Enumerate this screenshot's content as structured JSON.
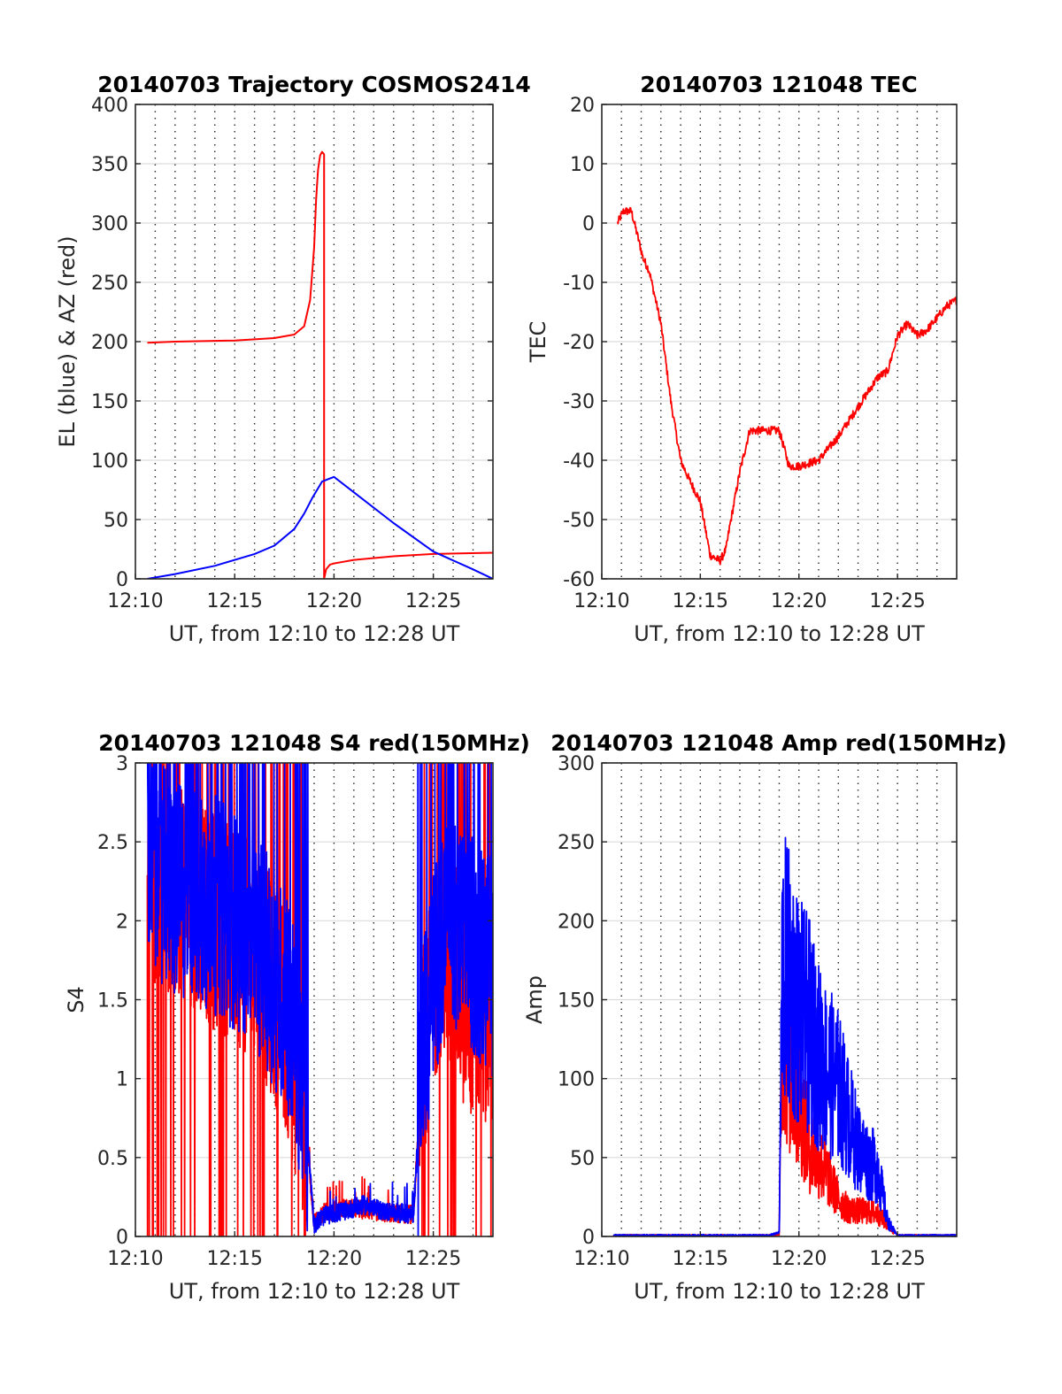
{
  "figure": {
    "panels": [
      {
        "title": "20140703 Trajectory COSMOS2414",
        "xlabel": "UT, from 12:10 to 12:28 UT",
        "ylabel": "EL (blue) & AZ (red)",
        "xticks": [
          "12:10",
          "12:15",
          "12:20",
          "12:25"
        ],
        "yticks": [
          "0",
          "50",
          "100",
          "150",
          "200",
          "250",
          "300",
          "350",
          "400"
        ]
      },
      {
        "title": "20140703 121048 TEC",
        "xlabel": "UT, from 12:10 to 12:28 UT",
        "ylabel": "TEC",
        "xticks": [
          "12:10",
          "12:15",
          "12:20",
          "12:25"
        ],
        "yticks": [
          "-60",
          "-50",
          "-40",
          "-30",
          "-20",
          "-10",
          "0",
          "10",
          "20"
        ]
      },
      {
        "title": "20140703 121048 S4 red(150MHz)",
        "xlabel": "UT, from 12:10 to 12:28 UT",
        "ylabel": "S4",
        "xticks": [
          "12:10",
          "12:15",
          "12:20",
          "12:25"
        ],
        "yticks": [
          "0",
          "0.5",
          "1",
          "1.5",
          "2",
          "2.5",
          "3"
        ]
      },
      {
        "title": "20140703 121048 Amp red(150MHz)",
        "xlabel": "UT, from 12:10 to 12:28 UT",
        "ylabel": "Amp",
        "xticks": [
          "12:10",
          "12:15",
          "12:20",
          "12:25"
        ],
        "yticks": [
          "0",
          "50",
          "100",
          "150",
          "200",
          "250",
          "300"
        ]
      }
    ]
  },
  "chart_data": [
    {
      "type": "line",
      "title": "20140703 Trajectory COSMOS2414",
      "xlabel": "UT, from 12:10 to 12:28 UT",
      "ylabel": "EL (blue) & AZ (red)",
      "xlim": [
        12.1667,
        12.4667
      ],
      "ylim": [
        0,
        400
      ],
      "x_unit": "hours",
      "grid": true,
      "series": [
        {
          "color": "#ff0000",
          "x": [
            12.1767,
            12.2,
            12.25,
            12.2833,
            12.3,
            12.3083,
            12.3133,
            12.3167,
            12.3183,
            12.32,
            12.3217,
            12.3233,
            12.325,
            12.325,
            12.325,
            12.3267,
            12.33,
            12.3333,
            12.35,
            12.3833,
            12.4167,
            12.4667
          ],
          "y": [
            199,
            200,
            201,
            203,
            206,
            213,
            235,
            280,
            320,
            345,
            357,
            360,
            358,
            200,
            0,
            8,
            12,
            13,
            16,
            19,
            21,
            22
          ]
        },
        {
          "color": "#0000ff",
          "x": [
            12.1767,
            12.2,
            12.2333,
            12.2667,
            12.2833,
            12.3,
            12.3083,
            12.315,
            12.3233,
            12.3333,
            12.35,
            12.3833,
            12.4167,
            12.45,
            12.4667
          ],
          "y": [
            0,
            4,
            11,
            21,
            28,
            42,
            55,
            68,
            82,
            86,
            73,
            47,
            23,
            8,
            0
          ]
        }
      ]
    },
    {
      "type": "line",
      "title": "20140703 121048 TEC",
      "xlabel": "UT, from 12:10 to 12:28 UT",
      "ylabel": "TEC",
      "xlim": [
        12.1667,
        12.4667
      ],
      "ylim": [
        -60,
        20
      ],
      "x_unit": "hours",
      "grid": true,
      "series": [
        {
          "color": "#ff0000",
          "x": [
            12.18,
            12.185,
            12.1917,
            12.1967,
            12.2017,
            12.2067,
            12.21,
            12.2167,
            12.225,
            12.2333,
            12.24,
            12.25,
            12.2583,
            12.2667,
            12.2717,
            12.275,
            12.2833,
            12.2917,
            12.3,
            12.3083,
            12.3133,
            12.3167,
            12.325,
            12.3333,
            12.35,
            12.3667,
            12.3833,
            12.4,
            12.4083,
            12.4167,
            12.425,
            12.4333,
            12.4417,
            12.45,
            12.4583,
            12.4667
          ],
          "y": [
            0,
            2,
            2,
            -2,
            -6,
            -8,
            -11,
            -17,
            -30,
            -40,
            -43,
            -47,
            -56,
            -57,
            -55,
            -51,
            -42,
            -35,
            -35,
            -35,
            -35,
            -35,
            -41,
            -41,
            -40,
            -36,
            -31,
            -26,
            -25,
            -19,
            -17,
            -19,
            -18,
            -16,
            -14,
            -13
          ]
        }
      ]
    },
    {
      "type": "line",
      "title": "20140703 121048 S4 red(150MHz)",
      "xlabel": "UT, from 12:10 to 12:28 UT",
      "ylabel": "S4",
      "xlim": [
        12.1667,
        12.4667
      ],
      "ylim": [
        0,
        3
      ],
      "x_unit": "hours",
      "grid": true,
      "series": [
        {
          "color": "#ff0000",
          "x": [
            12.1767,
            12.2,
            12.2333,
            12.2667,
            12.2917,
            12.3,
            12.3083,
            12.3167,
            12.325,
            12.3417,
            12.3583,
            12.375,
            12.4,
            12.4083,
            12.425,
            12.4417,
            12.4667
          ],
          "y": [
            2.3,
            2.2,
            2.0,
            1.8,
            1.4,
            1.1,
            0.8,
            0.09,
            0.15,
            0.18,
            0.17,
            0.15,
            0.14,
            1.2,
            1.9,
            1.5,
            1.4
          ]
        },
        {
          "color": "#0000ff",
          "x": [
            12.1767,
            12.2,
            12.2333,
            12.2667,
            12.2917,
            12.3,
            12.3083,
            12.3167,
            12.325,
            12.3417,
            12.3583,
            12.375,
            12.4,
            12.4083,
            12.425,
            12.4417,
            12.4667
          ],
          "y": [
            2.4,
            2.2,
            2.1,
            1.9,
            1.5,
            1.3,
            0.9,
            0.08,
            0.13,
            0.16,
            0.2,
            0.16,
            0.14,
            1.2,
            2.0,
            1.9,
            1.7
          ]
        }
      ]
    },
    {
      "type": "line",
      "title": "20140703 121048 Amp red(150MHz)",
      "xlabel": "UT, from 12:10 to 12:28 UT",
      "ylabel": "Amp",
      "xlim": [
        12.1667,
        12.4667
      ],
      "ylim": [
        0,
        300
      ],
      "x_unit": "hours",
      "grid": true,
      "series": [
        {
          "color": "#ff0000",
          "x": [
            12.1767,
            12.3083,
            12.3167,
            12.3192,
            12.325,
            12.3333,
            12.3417,
            12.35,
            12.3583,
            12.3667,
            12.375,
            12.3833,
            12.3917,
            12.4,
            12.4083,
            12.4167,
            12.4667
          ],
          "y": [
            0,
            0,
            1,
            140,
            110,
            90,
            60,
            50,
            40,
            25,
            18,
            17,
            17,
            15,
            8,
            0,
            0
          ]
        },
        {
          "color": "#0000ff",
          "x": [
            12.1767,
            12.3083,
            12.3167,
            12.3192,
            12.325,
            12.3333,
            12.3417,
            12.35,
            12.3583,
            12.3667,
            12.375,
            12.3833,
            12.3917,
            12.4,
            12.4083,
            12.4167,
            12.4667
          ],
          "y": [
            0,
            0,
            2,
            180,
            170,
            150,
            140,
            120,
            110,
            100,
            80,
            60,
            50,
            45,
            10,
            0,
            0
          ]
        }
      ]
    }
  ]
}
